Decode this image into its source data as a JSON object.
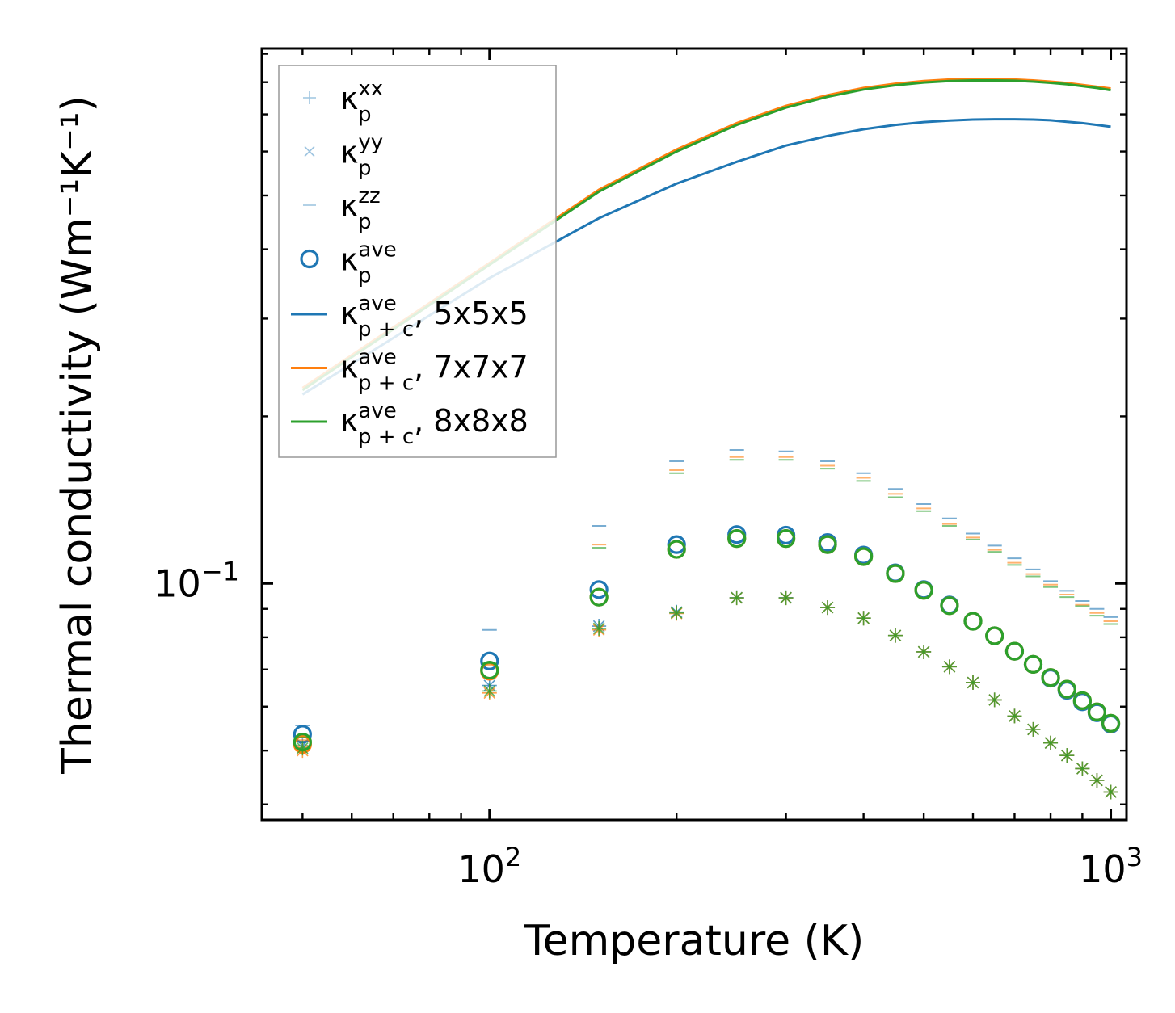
{
  "chart_data": {
    "type": "scatter",
    "title": "",
    "xlabel": "Temperature (K)",
    "ylabel": "Thermal conductivity (Wm⁻¹K⁻¹)",
    "xscale": "log",
    "yscale": "log",
    "xlim": [
      43,
      1060
    ],
    "ylim": [
      0.0375,
      0.92
    ],
    "x_tick_labels": [
      {
        "value": 100,
        "base": "10",
        "exp": "2"
      },
      {
        "value": 1000,
        "base": "10",
        "exp": "3"
      }
    ],
    "y_tick_labels": [
      {
        "value": 0.1,
        "base": "10",
        "exp": "−1"
      }
    ],
    "legend_location": "top-left",
    "x": [
      50,
      100,
      150,
      200,
      250,
      300,
      350,
      400,
      450,
      500,
      550,
      600,
      650,
      700,
      750,
      800,
      850,
      900,
      950,
      1000
    ],
    "series": [
      {
        "name": "5x5x5",
        "color": "#1f77b4",
        "line_x": [
          50,
          100,
          150,
          200,
          250,
          300,
          350,
          400,
          450,
          500,
          550,
          600,
          650,
          700,
          750,
          800,
          850,
          900,
          950,
          1000
        ],
        "line": [
          0.219,
          0.355,
          0.455,
          0.525,
          0.575,
          0.615,
          0.64,
          0.658,
          0.67,
          0.678,
          0.682,
          0.685,
          0.686,
          0.686,
          0.685,
          0.683,
          0.679,
          0.675,
          0.67,
          0.665
        ],
        "xx": [
          0.051,
          0.0655,
          0.0838,
          0.0888,
          0.0943,
          0.0943,
          0.0905,
          0.0866,
          0.0806,
          0.0753,
          0.0708,
          0.0663,
          0.0617,
          0.0577,
          0.0546,
          0.0516,
          0.049,
          0.0464,
          0.0442,
          0.0421
        ],
        "yy": [
          0.051,
          0.0655,
          0.0838,
          0.0888,
          0.0943,
          0.0943,
          0.0905,
          0.0866,
          0.0806,
          0.0753,
          0.0708,
          0.0663,
          0.0617,
          0.0577,
          0.0546,
          0.0516,
          0.049,
          0.0464,
          0.0442,
          0.0421
        ],
        "zz": [
          0.0555,
          0.0825,
          0.127,
          0.166,
          0.174,
          0.173,
          0.166,
          0.158,
          0.148,
          0.139,
          0.131,
          0.123,
          0.117,
          0.111,
          0.106,
          0.101,
          0.097,
          0.093,
          0.09,
          0.087
        ],
        "ave": [
          0.0535,
          0.0725,
          0.0975,
          0.1175,
          0.1225,
          0.1222,
          0.1185,
          0.1125,
          0.1045,
          0.0975,
          0.0915,
          0.0855,
          0.0805,
          0.0755,
          0.0715,
          0.0675,
          0.0642,
          0.0612,
          0.0585,
          0.0558
        ]
      },
      {
        "name": "7x7x7",
        "color": "#ff7f0e",
        "line_x": [
          50,
          100,
          150,
          200,
          250,
          300,
          350,
          400,
          450,
          500,
          550,
          600,
          650,
          700,
          750,
          800,
          850,
          900,
          950,
          1000
        ],
        "line": [
          0.225,
          0.378,
          0.512,
          0.605,
          0.675,
          0.725,
          0.758,
          0.781,
          0.795,
          0.804,
          0.809,
          0.811,
          0.811,
          0.809,
          0.806,
          0.802,
          0.797,
          0.791,
          0.785,
          0.779
        ],
        "xx": [
          0.05,
          0.0635,
          0.0825,
          0.0883,
          0.0942,
          0.0942,
          0.0905,
          0.0866,
          0.0806,
          0.0753,
          0.0708,
          0.0663,
          0.0617,
          0.0577,
          0.0546,
          0.0516,
          0.049,
          0.0464,
          0.0442,
          0.0421
        ],
        "yy": [
          0.05,
          0.0635,
          0.0825,
          0.0883,
          0.0942,
          0.0942,
          0.0905,
          0.0866,
          0.0806,
          0.0753,
          0.0708,
          0.0663,
          0.0617,
          0.0577,
          0.0546,
          0.0516,
          0.049,
          0.0464,
          0.0442,
          0.0421
        ],
        "zz": [
          0.0522,
          0.0712,
          0.1175,
          0.16,
          0.169,
          0.169,
          0.163,
          0.155,
          0.145,
          0.1365,
          0.128,
          0.121,
          0.115,
          0.109,
          0.104,
          0.0995,
          0.0955,
          0.0915,
          0.0885,
          0.0855
        ],
        "ave": [
          0.0513,
          0.0695,
          0.0945,
          0.1152,
          0.1205,
          0.1205,
          0.1175,
          0.1118,
          0.1042,
          0.0972,
          0.0912,
          0.0855,
          0.0805,
          0.0755,
          0.0715,
          0.0677,
          0.0645,
          0.0615,
          0.0587,
          0.056
        ]
      },
      {
        "name": "8x8x8",
        "color": "#2ca02c",
        "line_x": [
          50,
          100,
          150,
          200,
          250,
          300,
          350,
          400,
          450,
          500,
          550,
          600,
          650,
          700,
          750,
          800,
          850,
          900,
          950,
          1000
        ],
        "line": [
          0.223,
          0.375,
          0.508,
          0.6,
          0.67,
          0.72,
          0.753,
          0.776,
          0.79,
          0.799,
          0.804,
          0.806,
          0.806,
          0.805,
          0.802,
          0.798,
          0.793,
          0.787,
          0.781,
          0.774
        ],
        "xx": [
          0.0505,
          0.064,
          0.083,
          0.0885,
          0.0942,
          0.0942,
          0.0905,
          0.0866,
          0.0806,
          0.0753,
          0.0708,
          0.0663,
          0.0617,
          0.0577,
          0.0546,
          0.0516,
          0.049,
          0.0464,
          0.0442,
          0.0421
        ],
        "yy": [
          0.0505,
          0.064,
          0.083,
          0.0885,
          0.0942,
          0.0942,
          0.0905,
          0.0866,
          0.0806,
          0.0753,
          0.0708,
          0.0663,
          0.0617,
          0.0577,
          0.0546,
          0.0516,
          0.049,
          0.0464,
          0.0442,
          0.0421
        ],
        "zz": [
          0.0528,
          0.0718,
          0.116,
          0.158,
          0.167,
          0.167,
          0.161,
          0.153,
          0.143,
          0.135,
          0.127,
          0.12,
          0.114,
          0.108,
          0.103,
          0.0985,
          0.0945,
          0.091,
          0.0875,
          0.0845
        ],
        "ave": [
          0.0518,
          0.0698,
          0.0945,
          0.1152,
          0.1205,
          0.1205,
          0.1175,
          0.1118,
          0.1042,
          0.0972,
          0.0912,
          0.0855,
          0.0805,
          0.0755,
          0.0715,
          0.0677,
          0.0645,
          0.0615,
          0.0587,
          0.056
        ]
      }
    ],
    "legend": [
      {
        "marker": "plus",
        "base": "κ",
        "sup": "xx",
        "sub": "p",
        "suffix": ""
      },
      {
        "marker": "x",
        "base": "κ",
        "sup": "yy",
        "sub": "p",
        "suffix": ""
      },
      {
        "marker": "hline",
        "base": "κ",
        "sup": "zz",
        "sub": "p",
        "suffix": ""
      },
      {
        "marker": "circle",
        "base": "κ",
        "sup": "ave",
        "sub": "p",
        "suffix": ""
      },
      {
        "marker": "line",
        "color_series": 0,
        "base": "κ",
        "sup": "ave",
        "sub": "p + c",
        "suffix": ", 5x5x5"
      },
      {
        "marker": "line",
        "color_series": 1,
        "base": "κ",
        "sup": "ave",
        "sub": "p + c",
        "suffix": ", 7x7x7"
      },
      {
        "marker": "line",
        "color_series": 2,
        "base": "κ",
        "sup": "ave",
        "sub": "p + c",
        "suffix": ", 8x8x8"
      }
    ]
  }
}
